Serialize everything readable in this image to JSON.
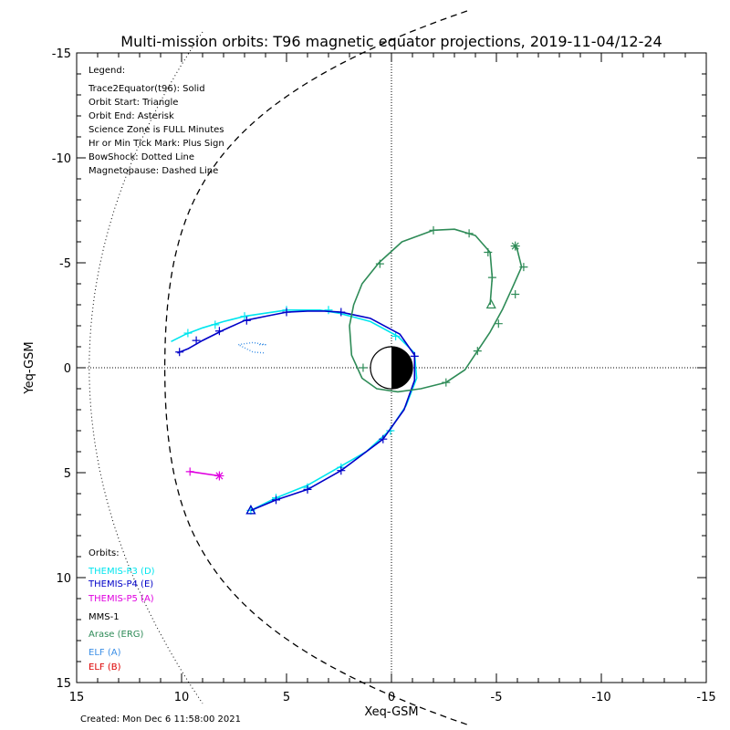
{
  "chart_data": {
    "type": "line",
    "title": "Multi-mission orbits: T96 magnetic equator projections, 2019-11-04/12-24",
    "xlabel": "Xeq-GSM",
    "ylabel": "Yeq-GSM",
    "xlim": [
      15,
      -15
    ],
    "ylim": [
      -15,
      15
    ],
    "xticks": [
      15,
      10,
      5,
      0,
      -5,
      -10,
      -15
    ],
    "yticks": [
      -15,
      -10,
      -5,
      0,
      5,
      10,
      15
    ],
    "x_tick_labels": [
      "15",
      "10",
      "5",
      "0",
      "-5",
      "-10",
      "-15"
    ],
    "y_tick_labels": [
      "-15",
      "-10",
      "-5",
      "0",
      "5",
      "10",
      "15"
    ],
    "grid": false,
    "legend": {
      "heading": "Legend:",
      "lines": [
        "Trace2Equator(t96): Solid",
        "Orbit Start: Triangle",
        "Orbit End: Asterisk",
        "Science Zone is FULL Minutes",
        "Hr or Min Tick Mark: Plus Sign",
        "BowShock: Dotted Line",
        "Magnetopause: Dashed Line"
      ]
    },
    "orbits_heading": "Orbits:",
    "orbit_labels": [
      {
        "text": "THEMIS-P3 (D)",
        "color": "#00e5ee"
      },
      {
        "text": "THEMIS-P4 (E)",
        "color": "#0000c8"
      },
      {
        "text": "THEMIS-P5 (A)",
        "color": "#e000e0"
      },
      {
        "text": "MMS-1",
        "color": "#000000"
      },
      {
        "text": "Arase (ERG)",
        "color": "#2e8b57"
      },
      {
        "text": "ELF (A)",
        "color": "#3a8ee6"
      },
      {
        "text": "ELF (B)",
        "color": "#dd0000"
      }
    ],
    "created": "Created: Mon Dec  6 11:58:00 2021",
    "series": [
      {
        "color": "#00e5ee",
        "points": [
          [
            6.7,
            6.8
          ],
          [
            5.5,
            6.2
          ],
          [
            4,
            5.6
          ],
          [
            2.6,
            4.8
          ],
          [
            1.2,
            4
          ],
          [
            0.1,
            3
          ],
          [
            -0.7,
            1.8
          ],
          [
            -1.2,
            0.5
          ],
          [
            -1.1,
            -0.7
          ],
          [
            -0.3,
            -1.5
          ],
          [
            1,
            -2.2
          ],
          [
            2.5,
            -2.6
          ],
          [
            3.4,
            -2.75
          ],
          [
            4.2,
            -2.75
          ],
          [
            5,
            -2.75
          ],
          [
            6,
            -2.6
          ],
          [
            7,
            -2.45
          ],
          [
            8,
            -2.2
          ],
          [
            9,
            -1.9
          ],
          [
            9.8,
            -1.6
          ],
          [
            10.5,
            -1.25
          ]
        ],
        "ticks": [
          [
            6.7,
            6.8
          ],
          [
            5.5,
            6.2
          ],
          [
            4,
            5.7
          ],
          [
            2.4,
            4.75
          ],
          [
            0.05,
            3
          ],
          [
            -0.2,
            -1.5
          ],
          [
            3,
            -2.75
          ],
          [
            5,
            -2.75
          ],
          [
            7,
            -2.45
          ],
          [
            8.4,
            -2.05
          ],
          [
            9.7,
            -1.65
          ]
        ],
        "start": [
          6.7,
          6.8
        ],
        "end": null
      },
      {
        "color": "#0000c8",
        "points": [
          [
            6.7,
            6.8
          ],
          [
            5.5,
            6.3
          ],
          [
            4,
            5.8
          ],
          [
            2.4,
            4.9
          ],
          [
            0.4,
            3.4
          ],
          [
            -0.6,
            2
          ],
          [
            -1.1,
            0.6
          ],
          [
            -1.1,
            -0.6
          ],
          [
            -0.4,
            -1.6
          ],
          [
            1,
            -2.35
          ],
          [
            2.4,
            -2.65
          ],
          [
            3.2,
            -2.7
          ],
          [
            4,
            -2.7
          ],
          [
            5,
            -2.65
          ],
          [
            6,
            -2.45
          ],
          [
            7,
            -2.25
          ],
          [
            8,
            -1.8
          ],
          [
            9,
            -1.3
          ],
          [
            9.7,
            -0.9
          ],
          [
            10.2,
            -0.7
          ]
        ],
        "ticks": [
          [
            5.5,
            6.3
          ],
          [
            4,
            5.8
          ],
          [
            2.4,
            4.9
          ],
          [
            0.4,
            3.4
          ],
          [
            -1.1,
            -0.55
          ],
          [
            2.4,
            -2.65
          ],
          [
            5,
            -2.65
          ],
          [
            6.9,
            -2.25
          ],
          [
            8.2,
            -1.75
          ],
          [
            9.3,
            -1.3
          ],
          [
            10.1,
            -0.75
          ]
        ],
        "start": [
          6.7,
          6.8
        ],
        "end": null
      },
      {
        "color": "#e000e0",
        "points": [
          [
            9.6,
            4.95
          ],
          [
            8.2,
            5.15
          ]
        ],
        "ticks": [
          [
            9.6,
            4.95
          ]
        ],
        "start": null,
        "end": [
          8.2,
          5.15
        ]
      },
      {
        "color": "#2e8b57",
        "points": [
          [
            -4.7,
            -3
          ],
          [
            -4.8,
            -4.3
          ],
          [
            -4.7,
            -5.5
          ],
          [
            -4,
            -6.3
          ],
          [
            -3,
            -6.6
          ],
          [
            -2,
            -6.55
          ],
          [
            -0.5,
            -6
          ],
          [
            0.6,
            -5
          ],
          [
            1.4,
            -4
          ],
          [
            1.8,
            -3
          ],
          [
            2,
            -2
          ],
          [
            1.9,
            -0.6
          ],
          [
            1.4,
            0.5
          ],
          [
            0.7,
            1
          ],
          [
            -0.3,
            1.15
          ],
          [
            -1.4,
            1
          ],
          [
            -2.6,
            0.7
          ],
          [
            -3.5,
            0.1
          ],
          [
            -4.1,
            -0.8
          ],
          [
            -4.7,
            -1.7
          ],
          [
            -5.3,
            -2.8
          ],
          [
            -5.8,
            -3.9
          ],
          [
            -6.2,
            -4.8
          ],
          [
            -6,
            -5.6
          ],
          [
            -5.9,
            -5.8
          ]
        ],
        "ticks": [
          [
            -4.8,
            -4.3
          ],
          [
            -4.6,
            -5.5
          ],
          [
            -3.7,
            -6.4
          ],
          [
            -2,
            -6.55
          ],
          [
            0.55,
            -4.95
          ],
          [
            1.35,
            0
          ],
          [
            -2.6,
            0.7
          ],
          [
            -4.1,
            -0.8
          ],
          [
            -5.1,
            -2.1
          ],
          [
            -5.9,
            -3.5
          ],
          [
            -6.3,
            -4.8
          ]
        ],
        "start": [
          -4.75,
          -3
        ],
        "end": [
          -5.9,
          -5.8
        ]
      },
      {
        "color": "#3a8ee6",
        "points": [
          [
            6.3,
            -1.1
          ],
          [
            6,
            -1.1
          ],
          [
            6.6,
            -1.2
          ],
          [
            7.3,
            -1.1
          ],
          [
            6.6,
            -0.75
          ],
          [
            6,
            -0.7
          ]
        ],
        "ticks": [],
        "start": null,
        "end": null,
        "dotted": true
      }
    ]
  }
}
